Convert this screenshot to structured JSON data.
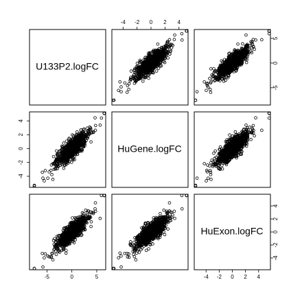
{
  "chart_data": {
    "type": "scatter",
    "subtype": "pairs-matrix",
    "variables": [
      "U133P2.logFC",
      "HuGene.logFC",
      "HuExon.logFC"
    ],
    "ranges": {
      "U133P2.logFC": [
        -8.5,
        6.8
      ],
      "HuGene.logFC": [
        -5.6,
        5.3
      ],
      "HuExon.logFC": [
        -5.8,
        5.8
      ]
    },
    "ticks": {
      "U133P2.logFC": [
        -5,
        0,
        5
      ],
      "HuGene.logFC": [
        -4,
        -2,
        0,
        2,
        4
      ],
      "HuExon.logFC": [
        -4,
        -2,
        0,
        2,
        4
      ]
    },
    "marker": "open-circle",
    "grid": false,
    "title": "",
    "pairs": [
      {
        "x_var": "HuGene.logFC",
        "y_var": "U133P2.logFC",
        "trend": "positive linear",
        "n_points_shown": "dense cloud (~thousands)"
      },
      {
        "x_var": "HuExon.logFC",
        "y_var": "U133P2.logFC",
        "trend": "positive linear",
        "n_points_shown": "dense cloud (~thousands)"
      },
      {
        "x_var": "U133P2.logFC",
        "y_var": "HuGene.logFC",
        "trend": "positive linear",
        "n_points_shown": "dense cloud (~thousands)"
      },
      {
        "x_var": "HuExon.logFC",
        "y_var": "HuGene.logFC",
        "trend": "positive linear",
        "n_points_shown": "dense cloud (~thousands)"
      },
      {
        "x_var": "U133P2.logFC",
        "y_var": "HuExon.logFC",
        "trend": "positive linear",
        "n_points_shown": "dense cloud (~thousands)"
      },
      {
        "x_var": "HuGene.logFC",
        "y_var": "HuExon.logFC",
        "trend": "positive linear",
        "n_points_shown": "dense cloud (~thousands)"
      }
    ]
  }
}
